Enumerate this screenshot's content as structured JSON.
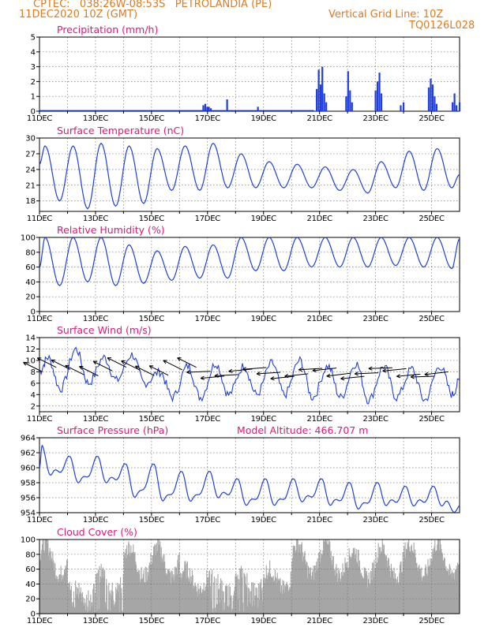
{
  "header": {
    "line1": "CPTEC:   038:26W-08:53S   PETROLANDIA (PE)",
    "line2": "11DEC2020 10Z (GMT)",
    "grid_note": "Vertical Grid Line: 10Z",
    "code": "TQ0126L028"
  },
  "colors": {
    "header": "#e07a1f",
    "title": "#e6147a",
    "series": "#1f3fe0",
    "cloud": "#a6a6a6"
  },
  "chart_data": [
    {
      "id": "precip",
      "type": "bar",
      "title": "Precipitation (mm/h)",
      "ylim": [
        0,
        5
      ],
      "yticks": [
        0,
        1,
        2,
        3,
        4,
        5
      ],
      "x_ticks": [
        "11DEC",
        "13DEC",
        "15DEC",
        "17DEC",
        "19DEC",
        "21DEC",
        "23DEC",
        "25DEC"
      ],
      "x_range_days": [
        0,
        15
      ],
      "events": [
        {
          "day": 5.85,
          "mm": 0.4
        },
        {
          "day": 5.92,
          "mm": 0.5
        },
        {
          "day": 5.99,
          "mm": 0.3
        },
        {
          "day": 6.05,
          "mm": 0.3
        },
        {
          "day": 6.12,
          "mm": 0.2
        },
        {
          "day": 6.7,
          "mm": 0.8
        },
        {
          "day": 7.8,
          "mm": 0.3
        },
        {
          "day": 9.9,
          "mm": 1.5
        },
        {
          "day": 9.97,
          "mm": 2.8
        },
        {
          "day": 10.04,
          "mm": 1.8
        },
        {
          "day": 10.1,
          "mm": 3.0
        },
        {
          "day": 10.17,
          "mm": 1.2
        },
        {
          "day": 10.24,
          "mm": 0.6
        },
        {
          "day": 10.95,
          "mm": 1.0
        },
        {
          "day": 11.02,
          "mm": 2.7
        },
        {
          "day": 11.09,
          "mm": 1.4
        },
        {
          "day": 11.16,
          "mm": 0.6
        },
        {
          "day": 12.0,
          "mm": 1.4
        },
        {
          "day": 12.07,
          "mm": 2.0
        },
        {
          "day": 12.14,
          "mm": 2.6
        },
        {
          "day": 12.21,
          "mm": 1.2
        },
        {
          "day": 12.9,
          "mm": 0.4
        },
        {
          "day": 13.0,
          "mm": 0.6
        },
        {
          "day": 13.9,
          "mm": 1.6
        },
        {
          "day": 13.97,
          "mm": 2.2
        },
        {
          "day": 14.04,
          "mm": 1.8
        },
        {
          "day": 14.11,
          "mm": 1.0
        },
        {
          "day": 14.18,
          "mm": 0.5
        },
        {
          "day": 14.75,
          "mm": 0.6
        },
        {
          "day": 14.82,
          "mm": 1.2
        },
        {
          "day": 14.89,
          "mm": 0.4
        },
        {
          "day": 15.0,
          "mm": 0.6
        }
      ]
    },
    {
      "id": "temp",
      "type": "line",
      "title": "Surface Temperature (nC)",
      "ylim": [
        16,
        30
      ],
      "yticks": [
        18,
        21,
        24,
        27,
        30
      ],
      "x_ticks": [
        "11DEC",
        "13DEC",
        "15DEC",
        "17DEC",
        "19DEC",
        "21DEC",
        "23DEC",
        "25DEC"
      ],
      "daily_max": [
        28.5,
        28.5,
        29.0,
        28.5,
        28.0,
        28.5,
        29.0,
        27.0,
        25.5,
        25.0,
        24.5,
        24.0,
        25.5,
        27.5,
        28.0
      ],
      "daily_min": [
        18.0,
        16.5,
        17.0,
        17.5,
        20.0,
        20.0,
        20.5,
        20.5,
        20.5,
        20.5,
        20.0,
        19.5,
        20.5,
        20.0,
        20.5
      ],
      "start_value": 25.0,
      "end_value": 23.0
    },
    {
      "id": "rh",
      "type": "line",
      "title": "Relative Humidity (%)",
      "ylim": [
        0,
        100
      ],
      "yticks": [
        0,
        20,
        40,
        60,
        80,
        100
      ],
      "x_ticks": [
        "11DEC",
        "13DEC",
        "15DEC",
        "17DEC",
        "19DEC",
        "21DEC",
        "23DEC",
        "25DEC"
      ],
      "daily_max": [
        100,
        100,
        100,
        90,
        82,
        88,
        90,
        100,
        100,
        100,
        100,
        100,
        100,
        100,
        100
      ],
      "daily_min": [
        35,
        40,
        35,
        38,
        42,
        45,
        45,
        55,
        55,
        60,
        60,
        60,
        62,
        60,
        58
      ],
      "start_value": 60,
      "end_value": 98
    },
    {
      "id": "wind",
      "type": "line",
      "title": "Surface Wind (m/s)",
      "ylim": [
        1,
        14
      ],
      "yticks": [
        2,
        4,
        6,
        8,
        10,
        12,
        14
      ],
      "x_ticks": [
        "11DEC",
        "13DEC",
        "15DEC",
        "17DEC",
        "19DEC",
        "21DEC",
        "23DEC",
        "25DEC"
      ],
      "daily_max": [
        10.5,
        12.0,
        10.5,
        11.0,
        8.0,
        9.0,
        9.5,
        9.0,
        9.5,
        10.0,
        9.0,
        9.5,
        9.0,
        8.5,
        9.0
      ],
      "daily_min": [
        5.0,
        6.0,
        6.5,
        6.0,
        3.5,
        3.5,
        4.0,
        4.0,
        4.0,
        3.5,
        3.5,
        3.0,
        3.5,
        3.0,
        4.0
      ],
      "arrows_heading": "from east-southeast (pointing west)"
    },
    {
      "id": "press",
      "type": "line",
      "title": "Surface Pressure (hPa)",
      "note": "Model Altitude: 466.707 m",
      "ylim": [
        954,
        964
      ],
      "yticks": [
        954,
        956,
        958,
        960,
        962,
        964
      ],
      "x_ticks": [
        "11DEC",
        "13DEC",
        "15DEC",
        "17DEC",
        "19DEC",
        "21DEC",
        "23DEC",
        "25DEC"
      ],
      "daily_max": [
        962.5,
        961.0,
        961.0,
        960.0,
        960.0,
        959.0,
        959.0,
        958.0,
        958.0,
        958.0,
        958.0,
        957.5,
        957.5,
        957.0,
        957.0
      ],
      "daily_min": [
        959.0,
        958.0,
        958.0,
        956.0,
        955.5,
        955.5,
        956.0,
        955.0,
        955.0,
        955.5,
        955.0,
        954.5,
        955.0,
        955.0,
        955.0
      ],
      "start_value": 959.5,
      "end_value": 954.5
    },
    {
      "id": "cloud",
      "type": "area",
      "title": "Cloud Cover (%)",
      "ylim": [
        0,
        100
      ],
      "yticks": [
        0,
        20,
        40,
        60,
        80,
        100
      ],
      "x_ticks": [
        "11DEC",
        "13DEC",
        "15DEC",
        "17DEC",
        "19DEC",
        "21DEC",
        "23DEC",
        "25DEC"
      ],
      "daily_percent": [
        95,
        40,
        55,
        90,
        90,
        60,
        50,
        55,
        60,
        95,
        95,
        85,
        90,
        95,
        95
      ]
    }
  ]
}
